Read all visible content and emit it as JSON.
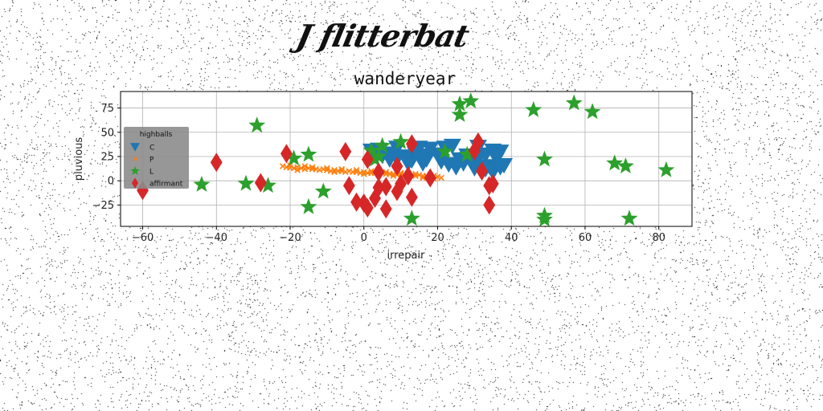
{
  "signature": "J flitterbat",
  "chart_data": {
    "type": "scatter",
    "title": "wanderyear",
    "xlabel": "irrepair",
    "ylabel": "pluvious",
    "xlim": [
      -66,
      89
    ],
    "ylim": [
      -47,
      92
    ],
    "xticks": [
      -60,
      -40,
      -20,
      0,
      20,
      40,
      60,
      80
    ],
    "yticks": [
      -25,
      0,
      25,
      50,
      75
    ],
    "grid": true,
    "legend": {
      "title": "highballs",
      "placement": "upper-left",
      "background": "#8c8c8c"
    },
    "series": [
      {
        "name": "C",
        "marker": "triangle-down",
        "color": "#1f77b4",
        "points": [
          [
            2,
            31
          ],
          [
            4,
            31
          ],
          [
            7,
            28
          ],
          [
            9,
            34
          ],
          [
            11,
            25
          ],
          [
            13,
            21
          ],
          [
            14,
            28
          ],
          [
            15,
            34
          ],
          [
            16,
            26
          ],
          [
            17,
            22
          ],
          [
            18,
            33
          ],
          [
            20,
            27
          ],
          [
            22,
            34
          ],
          [
            24,
            36
          ],
          [
            25,
            14
          ],
          [
            26,
            22
          ],
          [
            27,
            18
          ],
          [
            28,
            26
          ],
          [
            29,
            20
          ],
          [
            31,
            23
          ],
          [
            33,
            27
          ],
          [
            35,
            31
          ],
          [
            36,
            23
          ],
          [
            37,
            30
          ],
          [
            31,
            35
          ],
          [
            34,
            15
          ],
          [
            37,
            14
          ],
          [
            30,
            13
          ],
          [
            21,
            20
          ],
          [
            23,
            17
          ],
          [
            16,
            18
          ],
          [
            12,
            18
          ],
          [
            9,
            23
          ],
          [
            7,
            22
          ],
          [
            5,
            26
          ],
          [
            4,
            32
          ],
          [
            33,
            12
          ],
          [
            35,
            9
          ],
          [
            38,
            16
          ]
        ]
      },
      {
        "name": "P",
        "marker": "x",
        "color": "#ff7f0e",
        "points": [
          [
            -22,
            15
          ],
          [
            -21,
            14
          ],
          [
            -20,
            13.5
          ],
          [
            -19,
            13
          ],
          [
            -18,
            14
          ],
          [
            -17,
            13
          ],
          [
            -16,
            12
          ],
          [
            -15,
            13
          ],
          [
            -14,
            12
          ],
          [
            -13,
            12
          ],
          [
            -12,
            11
          ],
          [
            -11,
            12
          ],
          [
            -10,
            11
          ],
          [
            -9,
            10
          ],
          [
            -8,
            11
          ],
          [
            -7,
            10
          ],
          [
            -6,
            10
          ],
          [
            -5,
            9
          ],
          [
            -4,
            10
          ],
          [
            -3,
            9
          ],
          [
            -2,
            9
          ],
          [
            -1,
            8
          ],
          [
            0,
            9
          ],
          [
            1,
            8
          ],
          [
            2,
            8
          ],
          [
            3,
            8
          ],
          [
            4,
            7
          ],
          [
            5,
            8
          ],
          [
            6,
            7
          ],
          [
            7,
            7
          ],
          [
            8,
            7
          ],
          [
            9,
            6
          ],
          [
            10,
            7
          ],
          [
            11,
            6
          ],
          [
            12,
            6
          ],
          [
            13,
            6
          ],
          [
            14,
            5
          ],
          [
            15,
            6
          ],
          [
            16,
            5
          ],
          [
            17,
            5
          ],
          [
            18,
            4
          ],
          [
            19,
            5
          ],
          [
            20,
            4
          ],
          [
            -20,
            16
          ],
          [
            -18,
            11
          ],
          [
            -14,
            14
          ],
          [
            -10,
            13
          ],
          [
            -6,
            12
          ],
          [
            -2,
            11
          ],
          [
            2,
            10
          ],
          [
            6,
            9
          ],
          [
            10,
            8
          ],
          [
            14,
            7
          ],
          [
            18,
            6
          ],
          [
            -16,
            15
          ],
          [
            -8,
            9
          ],
          [
            0,
            7
          ],
          [
            8,
            5
          ],
          [
            16,
            3
          ],
          [
            19,
            2
          ],
          [
            21,
            3
          ]
        ]
      },
      {
        "name": "L",
        "marker": "star",
        "color": "#2ca02c",
        "points": [
          [
            -29,
            57
          ],
          [
            26,
            79
          ],
          [
            29,
            82
          ],
          [
            26,
            68
          ],
          [
            46,
            73
          ],
          [
            57,
            80
          ],
          [
            62,
            71
          ],
          [
            49,
            22
          ],
          [
            68,
            18
          ],
          [
            71,
            15
          ],
          [
            82,
            11
          ],
          [
            -44,
            -4
          ],
          [
            -32,
            -3
          ],
          [
            -26,
            -5
          ],
          [
            -11,
            -11
          ],
          [
            -15,
            27
          ],
          [
            -19,
            23
          ],
          [
            -15,
            -27
          ],
          [
            5,
            36
          ],
          [
            2,
            31
          ],
          [
            10,
            40
          ],
          [
            13,
            -39
          ],
          [
            49,
            -36
          ],
          [
            49,
            -40
          ],
          [
            72,
            -39
          ],
          [
            28,
            27
          ],
          [
            3,
            22
          ],
          [
            4,
            25
          ],
          [
            22,
            30
          ]
        ]
      },
      {
        "name": "affirmant",
        "marker": "diamond",
        "color": "#d62728",
        "points": [
          [
            -60,
            -10
          ],
          [
            -40,
            19
          ],
          [
            -28,
            -2
          ],
          [
            -21,
            28
          ],
          [
            -5,
            30
          ],
          [
            1,
            22
          ],
          [
            -4,
            -5
          ],
          [
            -2,
            -22
          ],
          [
            0,
            -23
          ],
          [
            1,
            -28
          ],
          [
            3,
            -18
          ],
          [
            4,
            -7
          ],
          [
            4,
            9
          ],
          [
            6,
            -29
          ],
          [
            6,
            -6
          ],
          [
            9,
            -11
          ],
          [
            9,
            15
          ],
          [
            10,
            -3
          ],
          [
            12,
            5
          ],
          [
            13,
            -17
          ],
          [
            13,
            38
          ],
          [
            18,
            3
          ],
          [
            31,
            40
          ],
          [
            32,
            10
          ],
          [
            34,
            -5
          ],
          [
            34,
            -25
          ],
          [
            35,
            -3
          ],
          [
            30,
            31
          ]
        ]
      }
    ]
  }
}
